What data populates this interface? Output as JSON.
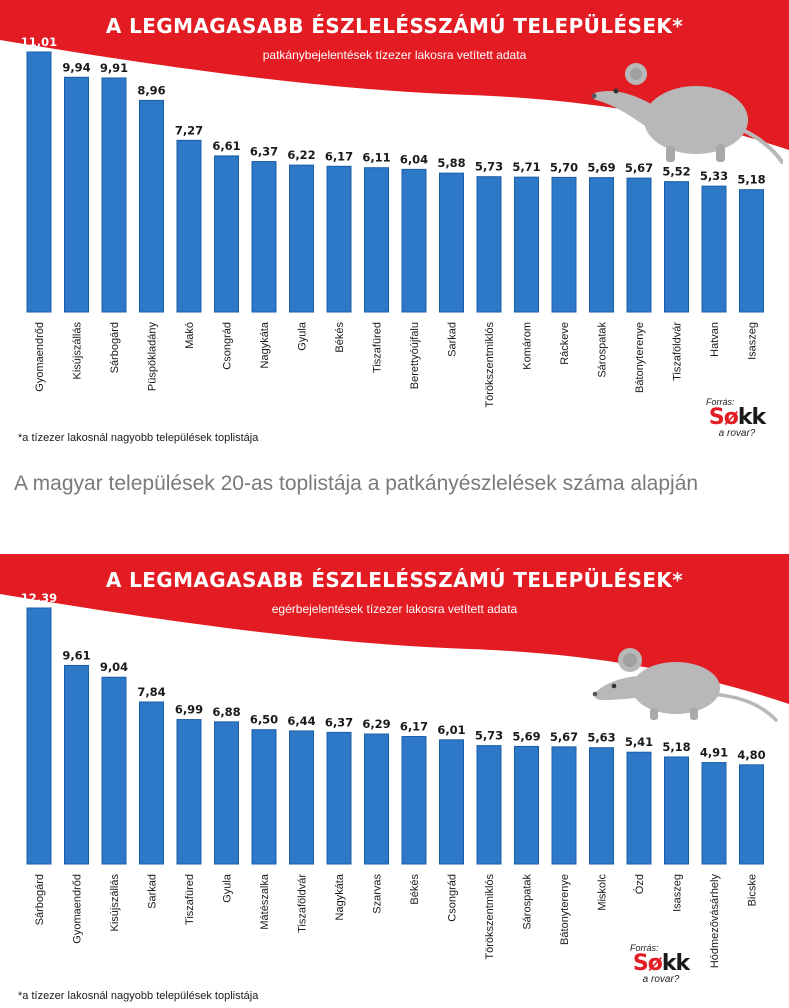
{
  "caption": "A magyar települések 20-as toplistája a patkányészlelések száma alapján",
  "colors": {
    "banner": "#e31b23",
    "bar": "#2e78c8",
    "bar_edge": "#1b5ea8",
    "rodent": "#b8b8b8"
  },
  "charts": [
    {
      "title": "A LEGMAGASABB ÉSZLELÉSSZÁMÚ TELEPÜLÉSEK*",
      "subtitle": "patkánybejelentések tízezer lakosra vetített adata",
      "note": "*a tízezer lakosnál nagyobb települések toplistája",
      "logo": {
        "source": "Forrás:",
        "brand_a": "Sø",
        "brand_b": "kk",
        "tagline": "a rovar?"
      },
      "illustration": "rat-icon"
    },
    {
      "title": "A LEGMAGASABB ÉSZLELÉSSZÁMÚ TELEPÜLÉSEK*",
      "subtitle": "egérbejelentések tízezer lakosra vetített adata",
      "note": "*a tízezer lakosnál nagyobb települések toplistája",
      "logo": {
        "source": "Forrás:",
        "brand_a": "Sø",
        "brand_b": "kk",
        "tagline": "a rovar?"
      },
      "illustration": "mouse-icon"
    }
  ],
  "chart_data": [
    {
      "type": "bar",
      "title": "A LEGMAGASABB ÉSZLELÉSSZÁMÚ TELEPÜLÉSEK*",
      "subtitle": "patkánybejelentések tízezer lakosra vetített adata",
      "categories": [
        "Gyomaendrőd",
        "Kisújszállás",
        "Sárbogárd",
        "Püspökladány",
        "Makó",
        "Csongrád",
        "Nagykáta",
        "Gyula",
        "Békés",
        "Tiszafüred",
        "Berettyóújfalu",
        "Sarkad",
        "Törökszentmiklós",
        "Komárom",
        "Ráckeve",
        "Sárospatak",
        "Bátonyterenye",
        "Tiszaföldvár",
        "Hatvan",
        "Isaszeg"
      ],
      "values": [
        11.01,
        9.94,
        9.91,
        8.96,
        7.27,
        6.61,
        6.37,
        6.22,
        6.17,
        6.11,
        6.04,
        5.88,
        5.73,
        5.71,
        5.7,
        5.69,
        5.67,
        5.52,
        5.33,
        5.18
      ],
      "value_labels": [
        "11,01",
        "9,94",
        "9,91",
        "8,96",
        "7,27",
        "6,61",
        "6,37",
        "6,22",
        "6,17",
        "6,11",
        "6,04",
        "5,88",
        "5,73",
        "5,71",
        "5,70",
        "5,69",
        "5,67",
        "5,52",
        "5,33",
        "5,18"
      ],
      "xlabel": "",
      "ylabel": "",
      "ylim": [
        0,
        11.01
      ],
      "grid": false,
      "legend": "none"
    },
    {
      "type": "bar",
      "title": "A LEGMAGASABB ÉSZLELÉSSZÁMÚ TELEPÜLÉSEK*",
      "subtitle": "egérbejelentések tízezer lakosra vetített adata",
      "categories": [
        "Sárbogárd",
        "Gyomaendrőd",
        "Kisújszállás",
        "Sarkad",
        "Tiszafüred",
        "Gyula",
        "Mátészalka",
        "Tiszaföldvár",
        "Nagykáta",
        "Szarvas",
        "Békés",
        "Csongrád",
        "Törökszentmiklós",
        "Sárospatak",
        "Bátonyterenye",
        "Miskolc",
        "Ózd",
        "Isaszeg",
        "Hódmezővásárhely",
        "Bicske"
      ],
      "values": [
        12.39,
        9.61,
        9.04,
        7.84,
        6.99,
        6.88,
        6.5,
        6.44,
        6.37,
        6.29,
        6.17,
        6.01,
        5.73,
        5.69,
        5.67,
        5.63,
        5.41,
        5.18,
        4.91,
        4.8
      ],
      "value_labels": [
        "12,39",
        "9,61",
        "9,04",
        "7,84",
        "6,99",
        "6,88",
        "6,50",
        "6,44",
        "6,37",
        "6,29",
        "6,17",
        "6,01",
        "5,73",
        "5,69",
        "5,67",
        "5,63",
        "5,41",
        "5,18",
        "4,91",
        "4,80"
      ],
      "xlabel": "",
      "ylabel": "",
      "ylim": [
        0,
        12.39
      ],
      "grid": false,
      "legend": "none"
    }
  ]
}
